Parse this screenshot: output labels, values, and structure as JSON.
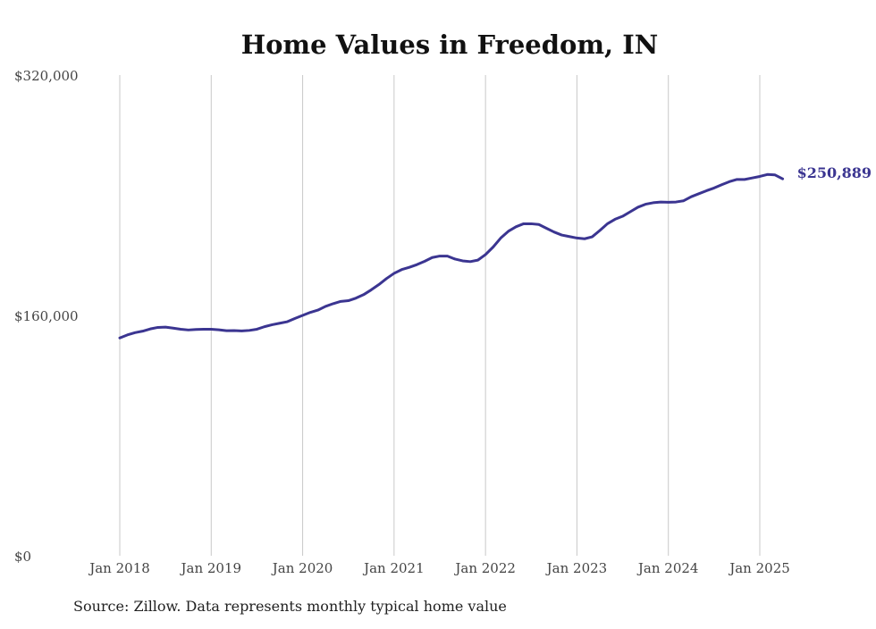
{
  "chart_data": {
    "type": "line",
    "title": "Home Values in Freedom, IN",
    "source": "Source: Zillow. Data represents monthly typical home value",
    "xlabel": "",
    "ylabel": "",
    "ylim": [
      0,
      320000
    ],
    "x_range": [
      "2018-01",
      "2025-04"
    ],
    "y_ticks": [
      {
        "value": 0,
        "label": "$0"
      },
      {
        "value": 160000,
        "label": "$160,000"
      },
      {
        "value": 320000,
        "label": "$320,000"
      }
    ],
    "x_ticks": [
      {
        "value": "2018-01",
        "label": "Jan 2018"
      },
      {
        "value": "2019-01",
        "label": "Jan 2019"
      },
      {
        "value": "2020-01",
        "label": "Jan 2020"
      },
      {
        "value": "2021-01",
        "label": "Jan 2021"
      },
      {
        "value": "2022-01",
        "label": "Jan 2022"
      },
      {
        "value": "2023-01",
        "label": "Jan 2023"
      },
      {
        "value": "2024-01",
        "label": "Jan 2024"
      },
      {
        "value": "2025-01",
        "label": "Jan 2025"
      }
    ],
    "grid": {
      "vertical": true,
      "horizontal": false
    },
    "line_color": "#3b3591",
    "grid_color": "#c8c8c8",
    "end_label": "$250,889",
    "series": [
      {
        "x": [
          "2018-01",
          "2018-02",
          "2018-03",
          "2018-04",
          "2018-05",
          "2018-06",
          "2018-07",
          "2018-08",
          "2018-09",
          "2018-10",
          "2018-11",
          "2018-12",
          "2019-01",
          "2019-02",
          "2019-03",
          "2019-04",
          "2019-05",
          "2019-06",
          "2019-07",
          "2019-08",
          "2019-09",
          "2019-10",
          "2019-11",
          "2019-12",
          "2020-01",
          "2020-02",
          "2020-03",
          "2020-04",
          "2020-05",
          "2020-06",
          "2020-07",
          "2020-08",
          "2020-09",
          "2020-10",
          "2020-11",
          "2020-12",
          "2021-01",
          "2021-02",
          "2021-03",
          "2021-04",
          "2021-05",
          "2021-06",
          "2021-07",
          "2021-08",
          "2021-09",
          "2021-10",
          "2021-11",
          "2021-12",
          "2022-01",
          "2022-02",
          "2022-03",
          "2022-04",
          "2022-05",
          "2022-06",
          "2022-07",
          "2022-08",
          "2022-09",
          "2022-10",
          "2022-11",
          "2022-12",
          "2023-01",
          "2023-02",
          "2023-03",
          "2023-04",
          "2023-05",
          "2023-06",
          "2023-07",
          "2023-08",
          "2023-09",
          "2023-10",
          "2023-11",
          "2023-12",
          "2024-01",
          "2024-02",
          "2024-03",
          "2024-04",
          "2024-05",
          "2024-06",
          "2024-07",
          "2024-08",
          "2024-09",
          "2024-10",
          "2024-11",
          "2024-12",
          "2025-01",
          "2025-02",
          "2025-03",
          "2025-04"
        ],
        "values": [
          145000,
          147000,
          148500,
          149500,
          151000,
          152000,
          152200,
          151500,
          150800,
          150300,
          150600,
          150800,
          150800,
          150400,
          149800,
          149900,
          149700,
          150000,
          150800,
          152500,
          153800,
          154800,
          155800,
          158000,
          160000,
          162000,
          163500,
          166000,
          167800,
          169300,
          169800,
          171500,
          173800,
          177000,
          180500,
          184500,
          188000,
          190500,
          192000,
          193800,
          196000,
          198500,
          199500,
          199500,
          197500,
          196300,
          195800,
          196800,
          200500,
          205500,
          211500,
          216000,
          219000,
          221000,
          221000,
          220500,
          218000,
          215500,
          213500,
          212500,
          211500,
          211000,
          212300,
          216500,
          221000,
          224000,
          226000,
          229000,
          232000,
          234000,
          235000,
          235500,
          235300,
          235500,
          236300,
          239000,
          241000,
          243000,
          244800,
          247000,
          249000,
          250500,
          250500,
          251500,
          252500,
          253800,
          253500,
          250889
        ]
      }
    ]
  }
}
